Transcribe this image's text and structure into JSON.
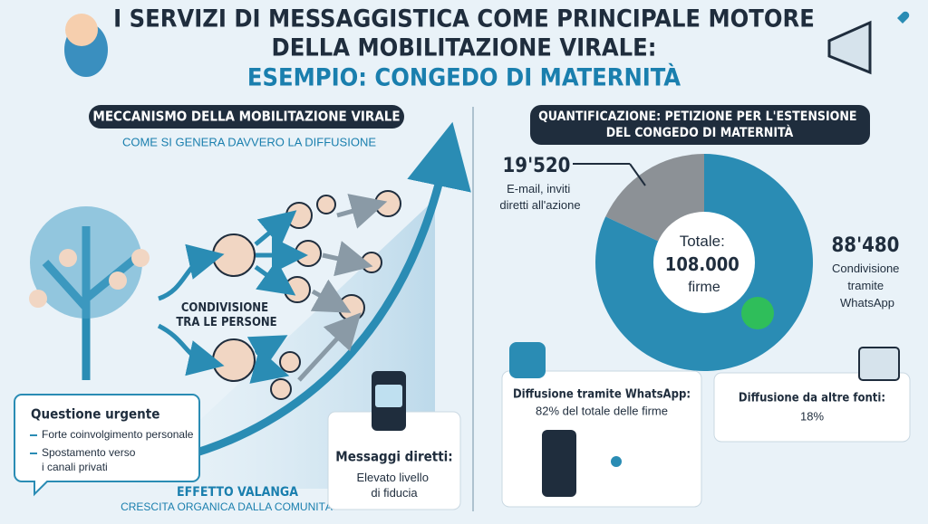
{
  "title": {
    "lines": [
      "I SERVIZI DI MESSAGGISTICA COME PRINCIPALE MOTORE",
      "DELLA MOBILITAZIONE VIRALE:",
      "ESEMPIO: CONGEDO DI MATERNITÀ"
    ]
  },
  "left": {
    "header": "MECCANISMO DELLA MOBILITAZIONE VIRALE",
    "subtitle": "COME SI GENERA DAVVERO LA DIFFUSIONE",
    "sharing": [
      "CONDIVISIONE",
      "TRA LE PERSONE"
    ],
    "urgent": {
      "title": "Questione urgente",
      "bullets": [
        [
          "Forte coinvolgimento personale"
        ],
        [
          "Spostamento verso",
          "i canali privati"
        ]
      ]
    },
    "avalanche": {
      "title": "EFFETTO VALANGA",
      "subtitle": "CRESCITA ORGANICA DALLA COMUNITÀ"
    },
    "direct": {
      "title": "Messaggi diretti:",
      "lines": [
        "Elevato livello",
        "di fiducia"
      ]
    }
  },
  "right": {
    "header": [
      "QUANTIFICAZIONE: PETIZIONE PER L'ESTENSIONE",
      "DEL CONGEDO DI MATERNITÀ"
    ],
    "donut": {
      "segments": [
        {
          "value": 19520,
          "label": "19'520",
          "text": [
            "E-mail, inviti",
            "diretti all'azione"
          ],
          "color": "#8c9196"
        },
        {
          "value": 88480,
          "label": "88'480",
          "text": [
            "Condivisione",
            "tramite",
            "WhatsApp"
          ],
          "color": "#2a8cb4"
        }
      ],
      "center": [
        "Totale:",
        "108.000",
        "firme"
      ]
    },
    "whatsapp_box": [
      "Diffusione tramite WhatsApp:",
      "82% del totale delle firme"
    ],
    "other_box": [
      "Diffusione da altre fonti:",
      "18%"
    ]
  }
}
